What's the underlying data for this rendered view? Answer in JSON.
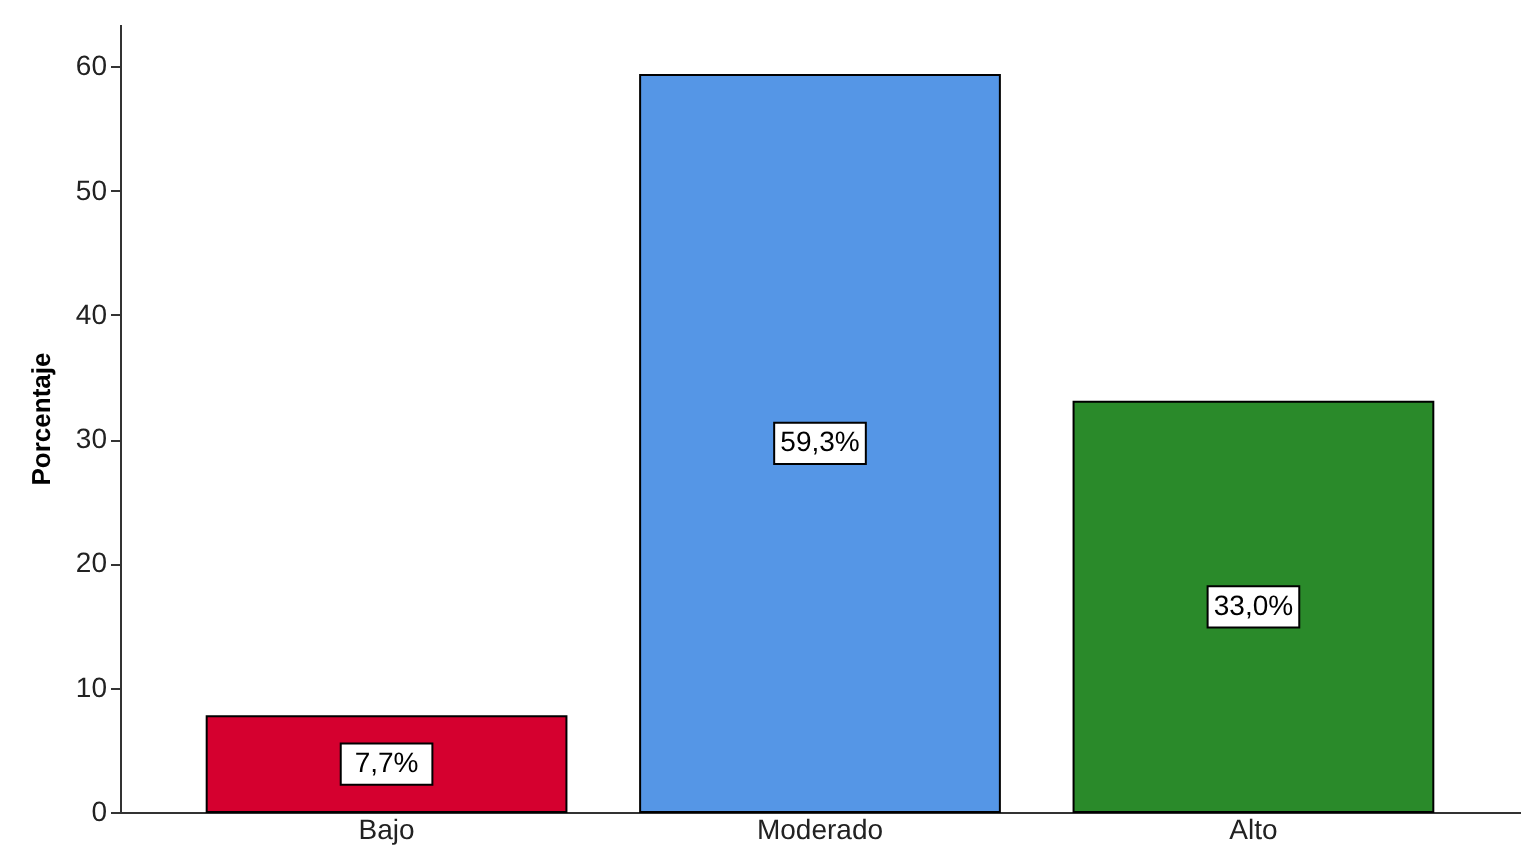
{
  "chart_data": {
    "type": "bar",
    "ylabel": "Porcentaje",
    "categories": [
      "Bajo",
      "Moderado",
      "Alto"
    ],
    "values": [
      7.7,
      59.3,
      33.0
    ],
    "colors": [
      "#d5002f",
      "#5596e6",
      "#2a8a2a"
    ],
    "value_labels": [
      "7,7%",
      "59,3%",
      "33,0%"
    ],
    "ylim": [
      0,
      63.4
    ],
    "yticks": [
      0,
      10,
      20,
      30,
      40,
      50,
      60
    ],
    "grid": false
  }
}
